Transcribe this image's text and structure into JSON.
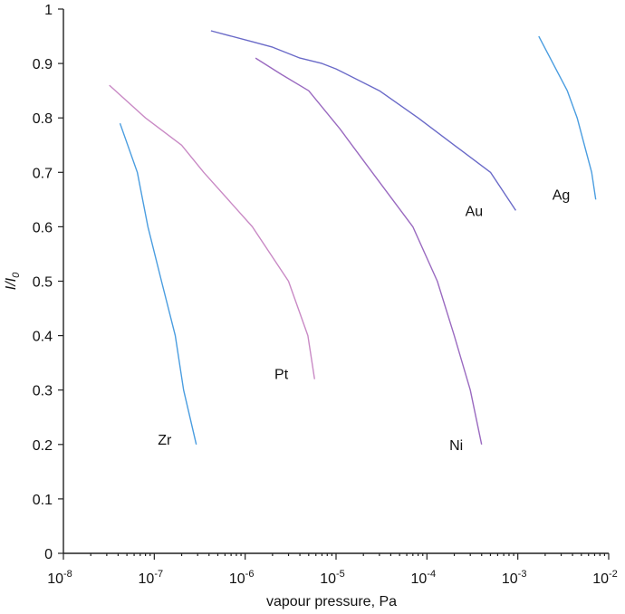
{
  "chart_data": {
    "type": "line",
    "title": "",
    "xlabel": "vapour pressure, Pa",
    "ylabel": "I/I0",
    "ylabel_parts": {
      "main": "I/I",
      "sub": "0"
    },
    "x_scale": "log",
    "xlim": [
      1e-08,
      0.01
    ],
    "ylim": [
      0,
      1
    ],
    "grid": false,
    "legend": "none",
    "x_ticks": [
      {
        "base": "10",
        "exp": "-8",
        "value": 1e-08
      },
      {
        "base": "10",
        "exp": "-7",
        "value": 1e-07
      },
      {
        "base": "10",
        "exp": "-6",
        "value": 1e-06
      },
      {
        "base": "10",
        "exp": "-5",
        "value": 1e-05
      },
      {
        "base": "10",
        "exp": "-4",
        "value": 0.0001
      },
      {
        "base": "10",
        "exp": "-3",
        "value": 0.001
      },
      {
        "base": "10",
        "exp": "-2",
        "value": 0.01
      }
    ],
    "y_ticks": [
      {
        "label": "0",
        "value": 0
      },
      {
        "label": "0.1",
        "value": 0.1
      },
      {
        "label": "0.2",
        "value": 0.2
      },
      {
        "label": "0.3",
        "value": 0.3
      },
      {
        "label": "0.4",
        "value": 0.4
      },
      {
        "label": "0.5",
        "value": 0.5
      },
      {
        "label": "0.6",
        "value": 0.6
      },
      {
        "label": "0.7",
        "value": 0.7
      },
      {
        "label": "0.8",
        "value": 0.8
      },
      {
        "label": "0.9",
        "value": 0.9
      },
      {
        "label": "1",
        "value": 1
      }
    ],
    "series": [
      {
        "name": "Zr",
        "color": "#4a9de0",
        "x": [
          4.2e-08,
          6.5e-08,
          8.5e-08,
          1.2e-07,
          1.7e-07,
          2.1e-07,
          2.9e-07
        ],
        "y": [
          0.79,
          0.7,
          0.6,
          0.5,
          0.4,
          0.3,
          0.2
        ],
        "label_at": {
          "x": 1.3e-07,
          "y": 0.21
        }
      },
      {
        "name": "Pt",
        "color": "#c98ac5",
        "x": [
          3.2e-08,
          8e-08,
          2e-07,
          3.5e-07,
          1.2e-06,
          3e-06,
          4.9e-06,
          5.8e-06
        ],
        "y": [
          0.86,
          0.8,
          0.75,
          0.7,
          0.6,
          0.5,
          0.4,
          0.32
        ],
        "label_at": {
          "x": 2.5e-06,
          "y": 0.33
        }
      },
      {
        "name": "Au",
        "color": "#6a6ac8",
        "x": [
          4.2e-07,
          1.2e-06,
          2e-06,
          4e-06,
          7e-06,
          1e-05,
          3e-05,
          8e-05,
          0.0002,
          0.0005,
          0.00095
        ],
        "y": [
          0.96,
          0.94,
          0.93,
          0.91,
          0.9,
          0.89,
          0.85,
          0.8,
          0.75,
          0.7,
          0.63
        ],
        "label_at": {
          "x": 0.00033,
          "y": 0.63
        }
      },
      {
        "name": "Ni",
        "color": "#9a6ac0",
        "x": [
          1.3e-06,
          2.5e-06,
          5e-06,
          1.1e-05,
          2.5e-05,
          7e-05,
          0.00013,
          0.0002,
          0.0003,
          0.0004
        ],
        "y": [
          0.91,
          0.88,
          0.85,
          0.78,
          0.7,
          0.6,
          0.5,
          0.4,
          0.3,
          0.2
        ],
        "label_at": {
          "x": 0.00021,
          "y": 0.2
        }
      },
      {
        "name": "Ag",
        "color": "#4a9de0",
        "x": [
          0.0017,
          0.0035,
          0.0045,
          0.0054,
          0.0065,
          0.0072
        ],
        "y": [
          0.95,
          0.85,
          0.8,
          0.75,
          0.7,
          0.65
        ],
        "label_at": {
          "x": 0.003,
          "y": 0.66
        }
      }
    ]
  }
}
